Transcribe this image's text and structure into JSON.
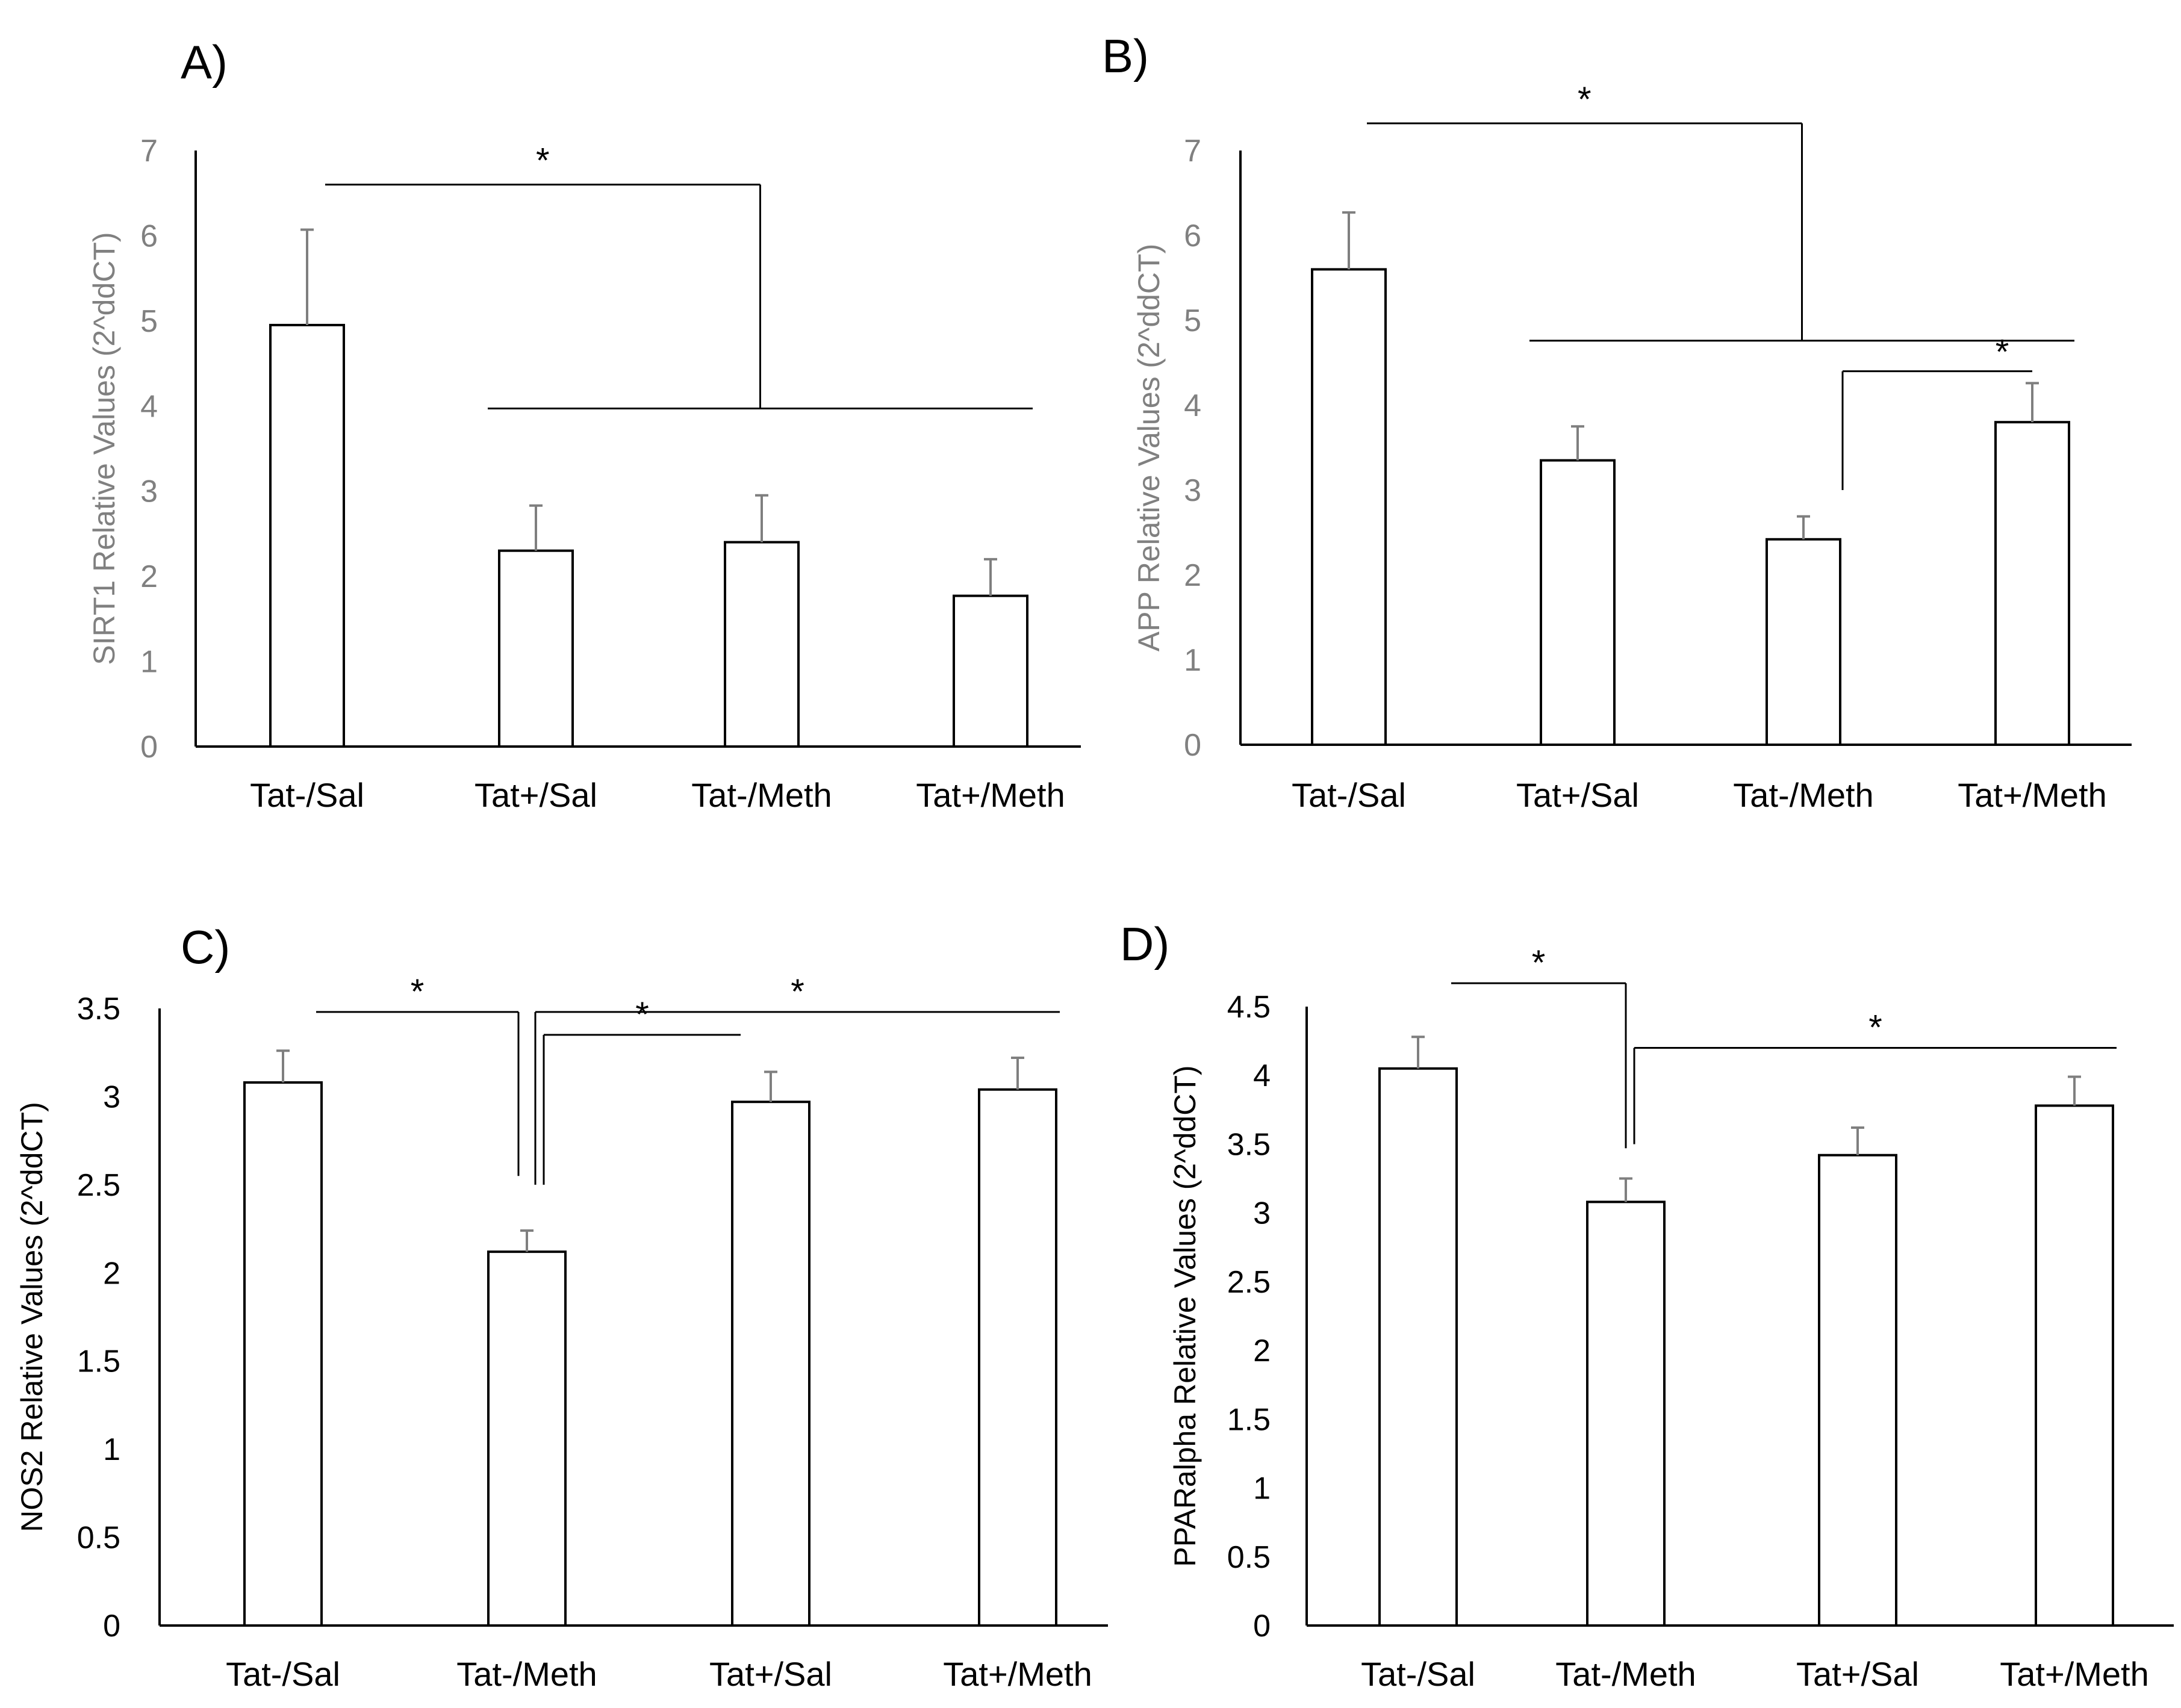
{
  "chart_data": [
    {
      "panel": "A)",
      "type": "bar",
      "categories": [
        "Tat-/Sal",
        "Tat+/Sal",
        "Tat-/Meth",
        "Tat+/Meth"
      ],
      "values": [
        4.95,
        2.3,
        2.4,
        1.77
      ],
      "errors": [
        1.12,
        0.53,
        0.55,
        0.43
      ],
      "ylabel": "SIRT1 Relative Values (2^ddCT)",
      "ylim": [
        0,
        7
      ],
      "yticks": [
        "0",
        "1",
        "2",
        "3",
        "4",
        "5",
        "6",
        "7"
      ],
      "axis_color": "#808080",
      "significance": [
        {
          "type": "one_vs_group",
          "from": 0,
          "group": [
            1,
            3
          ],
          "h_top": 6.6,
          "h_low": 3.97,
          "label": "*"
        }
      ]
    },
    {
      "panel": "B)",
      "type": "bar",
      "categories": [
        "Tat-/Sal",
        "Tat+/Sal",
        "Tat-/Meth",
        "Tat+/Meth"
      ],
      "values": [
        5.6,
        3.35,
        2.42,
        3.8
      ],
      "errors": [
        0.67,
        0.4,
        0.27,
        0.46
      ],
      "ylabel": "APP Relative Values (2^ddCT)",
      "ylim": [
        0,
        7
      ],
      "yticks": [
        "0",
        "1",
        "2",
        "3",
        "4",
        "5",
        "6",
        "7"
      ],
      "axis_color": "#808080",
      "significance": [
        {
          "type": "one_vs_group",
          "from": 0,
          "group": [
            1,
            3
          ],
          "h_top": 7.32,
          "h_low": 4.76,
          "label": "*"
        },
        {
          "type": "pair",
          "from": 2,
          "to": 3,
          "h": 4.4,
          "drop": 3.0,
          "label": "*"
        }
      ]
    },
    {
      "panel": "C)",
      "type": "bar",
      "categories": [
        "Tat-/Sal",
        "Tat-/Meth",
        "Tat+/Sal",
        "Tat+/Meth"
      ],
      "values": [
        3.08,
        2.12,
        2.97,
        3.04
      ],
      "errors": [
        0.18,
        0.12,
        0.17,
        0.18
      ],
      "ylabel": "NOS2 Relative Values (2^ddCT)",
      "ylim": [
        0,
        3.5
      ],
      "yticks": [
        "0",
        "0.5",
        "1",
        "1.5",
        "2",
        "2.5",
        "3",
        "3.5"
      ],
      "axis_color": "#000000",
      "significance": [
        {
          "type": "bracket",
          "from": 0,
          "to": 1,
          "h": 3.48,
          "drop": 2.55,
          "offset": -1,
          "label": "*"
        },
        {
          "type": "bracket",
          "from": 1,
          "to": 3,
          "h": 3.48,
          "drop": 2.5,
          "offset": 1,
          "label": "*"
        },
        {
          "type": "bracket",
          "from": 1,
          "to": 2,
          "h": 3.35,
          "drop": 2.5,
          "offset": 2,
          "label": "*"
        }
      ]
    },
    {
      "panel": "D)",
      "type": "bar",
      "categories": [
        "Tat-/Sal",
        "Tat-/Meth",
        "Tat+/Sal",
        "Tat+/Meth"
      ],
      "values": [
        4.05,
        3.08,
        3.42,
        3.78
      ],
      "errors": [
        0.23,
        0.17,
        0.2,
        0.21
      ],
      "ylabel": "PPARalpha Relative Values (2^ddCT)",
      "ylim": [
        0,
        4.5
      ],
      "yticks": [
        "0",
        "0.5",
        "1",
        "1.5",
        "2",
        "2.5",
        "3",
        "3.5",
        "4",
        "4.5"
      ],
      "axis_color": "#000000",
      "significance": [
        {
          "type": "bracket",
          "from": 0,
          "to": 1,
          "h": 4.67,
          "drop": 3.47,
          "offset": 0,
          "label": "*"
        },
        {
          "type": "bracket",
          "from": 1,
          "to": 3,
          "h": 4.2,
          "drop": 3.5,
          "offset": 1,
          "label": "*"
        }
      ]
    }
  ]
}
